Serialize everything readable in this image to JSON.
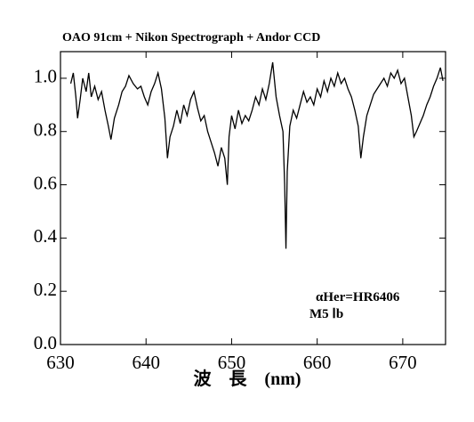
{
  "chart_data": {
    "type": "line",
    "title": "OAO 91cm + Nikon Spectrograph + Andor CCD",
    "x_label": "波　長　(nm)",
    "annotations": [
      "αHer=HR6406",
      "M5 Ⅰb"
    ],
    "color": "#000000",
    "xlim": [
      630,
      675
    ],
    "xticks": [
      630,
      640,
      650,
      660,
      670
    ],
    "ylim": [
      0,
      1.1
    ],
    "yticks": [
      {
        "value": 0,
        "label": "0.0"
      },
      0.2,
      0.4,
      0.6,
      0.8,
      {
        "value": 1,
        "label": "1.0"
      }
    ],
    "x": [
      631.2,
      631.5,
      631.8,
      632.0,
      632.3,
      632.6,
      633.0,
      633.3,
      633.6,
      634.0,
      634.4,
      634.8,
      635.2,
      635.6,
      635.9,
      636.3,
      636.8,
      637.2,
      637.6,
      638.0,
      638.5,
      639.0,
      639.4,
      639.8,
      640.2,
      640.6,
      641.0,
      641.4,
      641.8,
      642.2,
      642.5,
      642.8,
      643.2,
      643.6,
      644.0,
      644.4,
      644.8,
      645.2,
      645.6,
      646.0,
      646.4,
      646.8,
      647.2,
      647.6,
      648.0,
      648.4,
      648.8,
      649.2,
      649.5,
      649.7,
      650.0,
      650.4,
      650.8,
      651.2,
      651.6,
      652.0,
      652.4,
      652.8,
      653.2,
      653.6,
      654.0,
      654.4,
      654.8,
      655.2,
      655.6,
      656.0,
      656.2,
      656.35,
      656.5,
      656.8,
      657.2,
      657.6,
      658.0,
      658.4,
      658.8,
      659.2,
      659.6,
      660.0,
      660.4,
      660.8,
      661.2,
      661.6,
      662.0,
      662.4,
      662.8,
      663.2,
      663.6,
      664.0,
      664.4,
      664.8,
      665.1,
      665.4,
      665.8,
      666.2,
      666.6,
      667.0,
      667.4,
      667.8,
      668.2,
      668.6,
      669.0,
      669.4,
      669.8,
      670.2,
      670.6,
      671.0,
      671.3,
      671.6,
      672.0,
      672.4,
      672.8,
      673.2,
      673.6,
      674.0,
      674.4,
      674.7
    ],
    "values": [
      0.98,
      1.02,
      0.93,
      0.85,
      0.92,
      1.0,
      0.95,
      1.02,
      0.93,
      0.97,
      0.92,
      0.95,
      0.88,
      0.82,
      0.77,
      0.85,
      0.9,
      0.95,
      0.97,
      1.01,
      0.98,
      0.96,
      0.97,
      0.93,
      0.9,
      0.95,
      0.98,
      1.02,
      0.96,
      0.85,
      0.7,
      0.78,
      0.82,
      0.88,
      0.83,
      0.9,
      0.86,
      0.92,
      0.95,
      0.89,
      0.84,
      0.86,
      0.8,
      0.76,
      0.72,
      0.67,
      0.74,
      0.7,
      0.6,
      0.78,
      0.86,
      0.81,
      0.88,
      0.83,
      0.86,
      0.84,
      0.88,
      0.93,
      0.9,
      0.96,
      0.92,
      0.98,
      1.06,
      0.93,
      0.86,
      0.8,
      0.6,
      0.36,
      0.65,
      0.82,
      0.88,
      0.85,
      0.9,
      0.95,
      0.91,
      0.93,
      0.9,
      0.96,
      0.93,
      0.99,
      0.95,
      1.0,
      0.97,
      1.02,
      0.98,
      1.0,
      0.96,
      0.93,
      0.88,
      0.82,
      0.7,
      0.78,
      0.86,
      0.9,
      0.94,
      0.96,
      0.98,
      1.0,
      0.97,
      1.02,
      1.0,
      1.03,
      0.98,
      1.0,
      0.93,
      0.86,
      0.78,
      0.8,
      0.83,
      0.86,
      0.9,
      0.93,
      0.97,
      1.0,
      1.04,
      0.99
    ]
  }
}
